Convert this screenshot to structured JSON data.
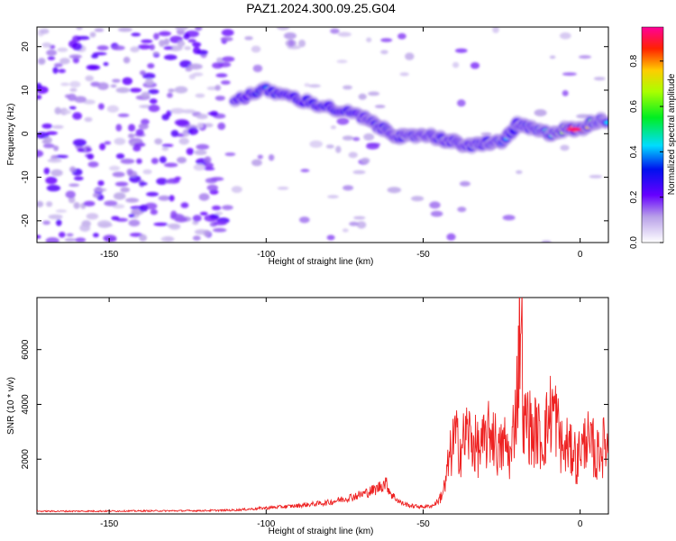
{
  "title": "PAZ1.2024.300.09.25.G04",
  "chart_data": [
    {
      "type": "heatmap",
      "xlabel": "Height of straight line (km)",
      "ylabel": "Frequency (Hz)",
      "xlim": [
        -173,
        9
      ],
      "ylim": [
        -25,
        24.5
      ],
      "xticks": [
        "-150",
        "-100",
        "-50",
        "0"
      ],
      "xtick_values": [
        -150,
        -100,
        -50,
        0
      ],
      "yticks": [
        "20",
        "10",
        "0",
        "-10",
        "-20"
      ],
      "ytick_values": [
        20,
        10,
        0,
        -10,
        -20
      ],
      "colorbar": {
        "label": "Normalized spectral amplitude",
        "range": [
          0,
          0.95
        ],
        "ticks": [
          "0.0",
          "0.2",
          "0.4",
          "0.6",
          "0.8"
        ],
        "tick_values": [
          0.0,
          0.2,
          0.4,
          0.6,
          0.8
        ]
      },
      "ridge": {
        "x": [
          -110,
          -100,
          -90,
          -80,
          -70,
          -65,
          -60,
          -55,
          -50,
          -45,
          -40,
          -35,
          -30,
          -25,
          -20,
          -15,
          -10,
          -5,
          0,
          5,
          9
        ],
        "frequency": [
          8,
          10,
          8,
          6,
          4,
          2,
          0,
          -1,
          0,
          -1,
          -2,
          -3,
          -2,
          -2,
          2,
          1,
          0,
          1,
          1,
          3,
          3
        ],
        "amplitude": [
          0.2,
          0.35,
          0.25,
          0.3,
          0.25,
          0.3,
          0.28,
          0.35,
          0.25,
          0.3,
          0.28,
          0.3,
          0.35,
          0.4,
          0.3,
          0.35,
          0.5,
          0.7,
          0.95,
          0.5,
          0.4
        ]
      }
    },
    {
      "type": "line",
      "xlabel": "Height of straight line (km)",
      "ylabel": "SNR (10 * v/v)",
      "xlim": [
        -173,
        9
      ],
      "ylim": [
        0,
        7900
      ],
      "xticks": [
        "-150",
        "-100",
        "-50",
        "0"
      ],
      "xtick_values": [
        -150,
        -100,
        -50,
        0
      ],
      "yticks": [
        "2000",
        "4000",
        "6000"
      ],
      "ytick_values": [
        2000,
        4000,
        6000
      ],
      "color": "#ee2222",
      "x": [
        -173,
        -160,
        -140,
        -120,
        -110,
        -100,
        -90,
        -80,
        -75,
        -70,
        -65,
        -62,
        -60,
        -57,
        -54,
        -50,
        -47,
        -45,
        -43,
        -42,
        -40,
        -38,
        -36,
        -34,
        -32,
        -30,
        -28,
        -26,
        -24,
        -22,
        -21,
        -20,
        -19,
        -18.5,
        -18,
        -17,
        -16,
        -15,
        -14,
        -12,
        -10,
        -9,
        -8,
        -7,
        -6,
        -5,
        -4,
        -3,
        -2,
        -1,
        0,
        1,
        2,
        3,
        4,
        5,
        6,
        7,
        8,
        9
      ],
      "y": [
        100,
        100,
        110,
        120,
        140,
        220,
        300,
        420,
        560,
        700,
        900,
        1150,
        700,
        400,
        300,
        260,
        300,
        500,
        1000,
        1800,
        2800,
        2400,
        3000,
        2600,
        2300,
        2700,
        3100,
        2200,
        2600,
        2000,
        3500,
        4500,
        7800,
        6000,
        3000,
        3500,
        3200,
        2800,
        3100,
        2600,
        3500,
        3800,
        3700,
        3100,
        2500,
        2200,
        2600,
        2200,
        2500,
        1700,
        2600,
        2300,
        3100,
        2200,
        2600,
        1800,
        2500,
        2300,
        2700,
        2300
      ]
    }
  ]
}
